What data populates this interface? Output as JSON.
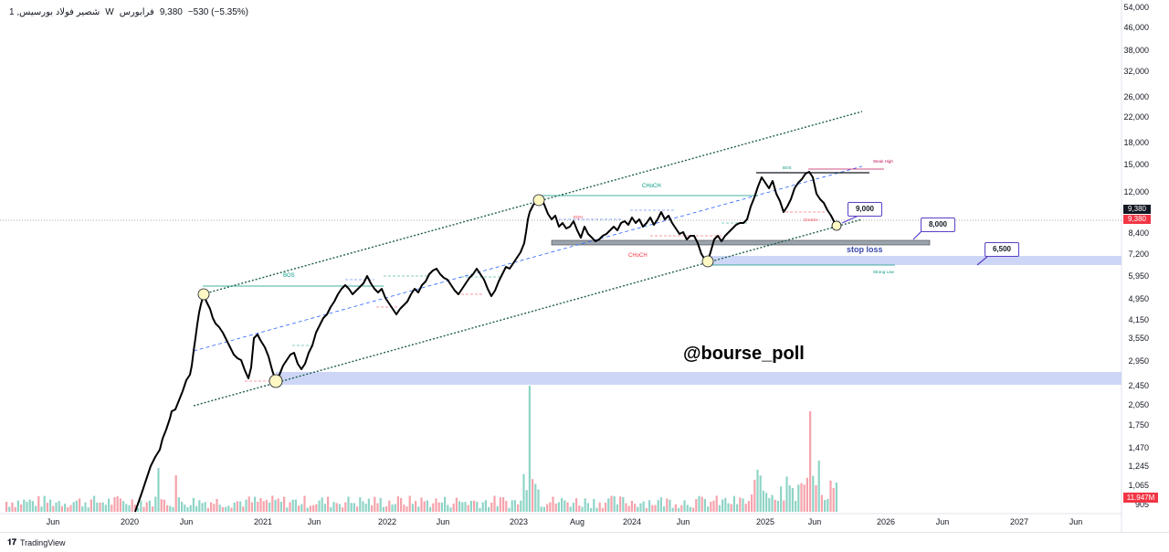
{
  "header": {
    "symbol": "1 ,شصير فولاد بورسيس",
    "timeframe": "W",
    "exchange": "فرابورس",
    "price": "9,380",
    "change": "−530 (−5.35%)"
  },
  "price_axis": {
    "ticks": [
      "54,000",
      "46,000",
      "38,000",
      "32,000",
      "26,000",
      "22,000",
      "18,000",
      "15,000",
      "12,000",
      "9,380",
      "8,400",
      "7,200",
      "5,950",
      "4,950",
      "4,150",
      "3,550",
      "2,950",
      "2,450",
      "2,050",
      "1,750",
      "1,470",
      "1,245",
      "1,065",
      "905"
    ],
    "current_price_label": "9,380",
    "current_price_label2": "9,380",
    "volume_label": "11.947M"
  },
  "time_axis": {
    "labels": [
      "Jun",
      "2020",
      "Jun",
      "2021",
      "Jun",
      "2022",
      "Jun",
      "2023",
      "Aug",
      "2024",
      "Jun",
      "2025",
      "Jun",
      "2026",
      "Jun",
      "2027",
      "Jun"
    ]
  },
  "annotations": {
    "watermark": "@bourse_poll",
    "stop_loss": "stop loss",
    "target_1": "9,000",
    "target_2": "8,000",
    "target_3": "6,500",
    "bos": "BOS",
    "choch": "CHoCH",
    "choch_mid": "CHoCH",
    "weak_high": "Weak High",
    "strong_low": "Strong Low",
    "small_bos": "BOS",
    "small_choch": "CHoCH",
    "eqh": "EQH"
  },
  "footer": {
    "brand": "TradingView"
  },
  "colors": {
    "price_line": "#000000",
    "channel": "#1e5f4a",
    "zone": "#c5cff7",
    "label_red": "#f23645",
    "label_teal": "#089981",
    "target_border": "#5b3fc7"
  }
}
